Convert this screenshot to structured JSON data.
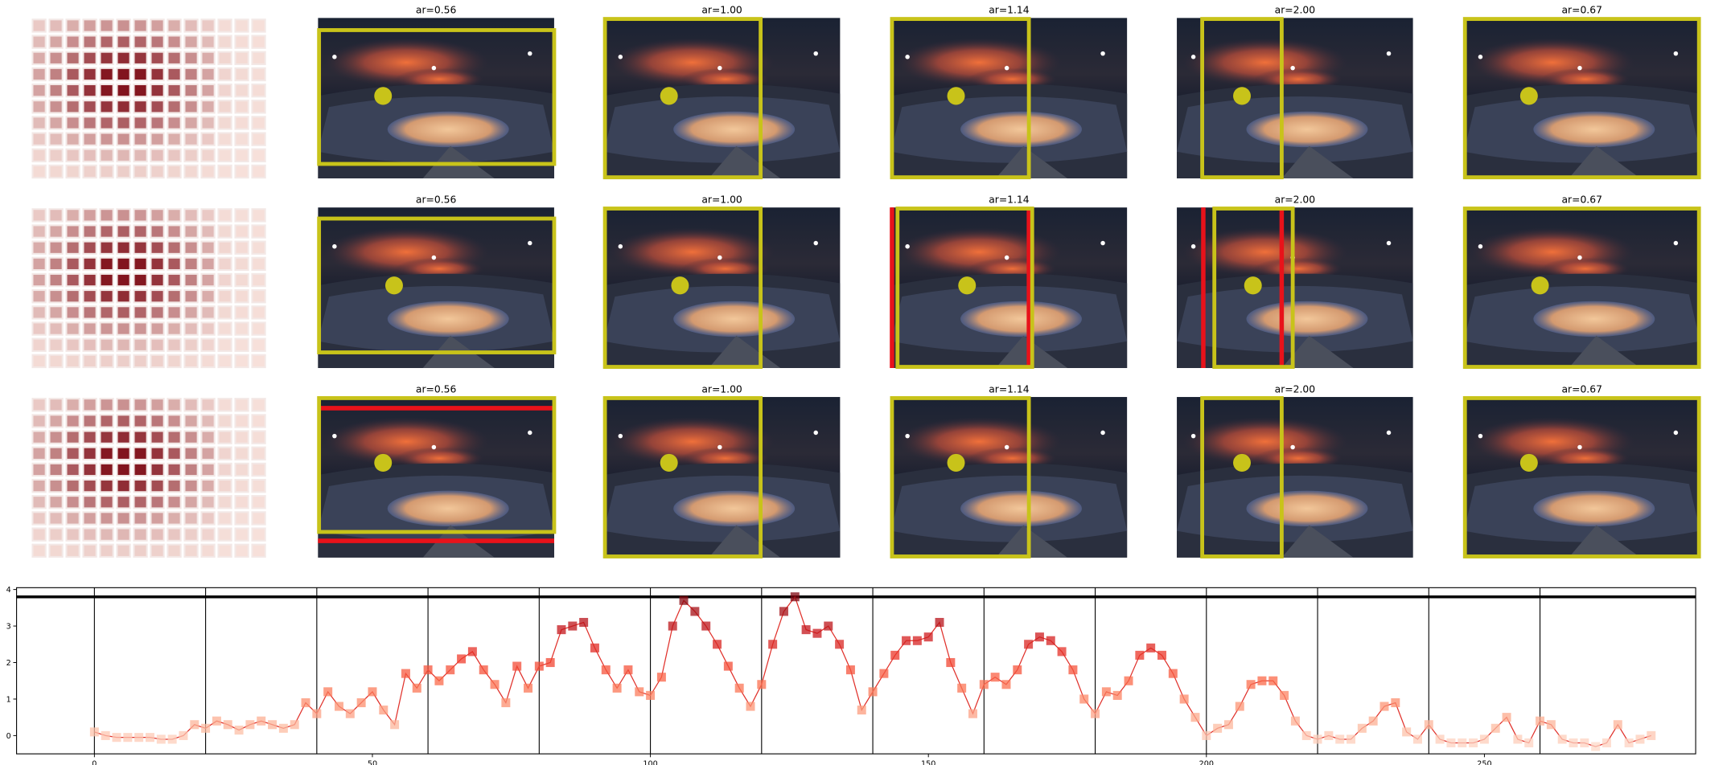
{
  "panel_titles": [
    [
      "ar=0.56",
      "ar=1.00",
      "ar=1.14",
      "ar=2.00",
      "ar=0.67"
    ],
    [
      "ar=0.56",
      "ar=1.00",
      "ar=1.14",
      "ar=2.00",
      "ar=0.67"
    ],
    [
      "ar=0.56",
      "ar=1.00",
      "ar=1.14",
      "ar=2.00",
      "ar=0.67"
    ]
  ],
  "chart_data": {
    "type": "line",
    "x": [
      0,
      2,
      4,
      6,
      8,
      10,
      12,
      14,
      16,
      18,
      20,
      22,
      24,
      26,
      28,
      30,
      32,
      34,
      36,
      38,
      40,
      42,
      44,
      46,
      48,
      50,
      52,
      54,
      56,
      58,
      60,
      62,
      64,
      66,
      68,
      70,
      72,
      74,
      76,
      78,
      80,
      82,
      84,
      86,
      88,
      90,
      92,
      94,
      96,
      98,
      100,
      102,
      104,
      106,
      108,
      110,
      112,
      114,
      116,
      118,
      120,
      122,
      124,
      126,
      128,
      130,
      132,
      134,
      136,
      138,
      140,
      142,
      144,
      146,
      148,
      150,
      152,
      154,
      156,
      158,
      160,
      162,
      164,
      166,
      168,
      170,
      172,
      174,
      176,
      178,
      180,
      182,
      184,
      186,
      188,
      190,
      192,
      194,
      196,
      198,
      200,
      202,
      204,
      206,
      208,
      210,
      212,
      214,
      216,
      218,
      220,
      222,
      224,
      226,
      228,
      230,
      232,
      234,
      236,
      238,
      240,
      242,
      244,
      246,
      248,
      250,
      252,
      254,
      256,
      258,
      260,
      262,
      264,
      266,
      268,
      270,
      272,
      274,
      276,
      278,
      280
    ],
    "values": [
      0.1,
      0.0,
      -0.05,
      -0.05,
      -0.05,
      -0.05,
      -0.1,
      -0.1,
      0.0,
      0.3,
      0.2,
      0.4,
      0.3,
      0.15,
      0.3,
      0.4,
      0.3,
      0.2,
      0.3,
      0.9,
      0.6,
      1.2,
      0.8,
      0.6,
      0.9,
      1.2,
      0.7,
      0.3,
      1.7,
      1.3,
      1.8,
      1.5,
      1.8,
      2.1,
      2.3,
      1.8,
      1.4,
      0.9,
      1.9,
      1.3,
      1.9,
      2.0,
      2.9,
      3.0,
      3.1,
      2.4,
      1.8,
      1.3,
      1.8,
      1.2,
      1.1,
      1.6,
      3.0,
      3.7,
      3.4,
      3.0,
      2.5,
      1.9,
      1.3,
      0.8,
      1.4,
      2.5,
      3.4,
      3.8,
      2.9,
      2.8,
      3.0,
      2.5,
      1.8,
      0.7,
      1.2,
      1.7,
      2.2,
      2.6,
      2.6,
      2.7,
      3.1,
      2.0,
      1.3,
      0.6,
      1.4,
      1.6,
      1.4,
      1.8,
      2.5,
      2.7,
      2.6,
      2.3,
      1.8,
      1.0,
      0.6,
      1.2,
      1.1,
      1.5,
      2.2,
      2.4,
      2.2,
      1.7,
      1.0,
      0.5,
      0.0,
      0.2,
      0.3,
      0.8,
      1.4,
      1.5,
      1.5,
      1.1,
      0.4,
      0.0,
      -0.1,
      0.0,
      -0.1,
      -0.1,
      0.2,
      0.4,
      0.8,
      0.9,
      0.1,
      -0.1,
      0.3,
      -0.1,
      -0.2,
      -0.2,
      -0.2,
      -0.1,
      0.2,
      0.5,
      -0.1,
      -0.2,
      0.4,
      0.3,
      -0.1,
      -0.2,
      -0.2,
      -0.3,
      -0.2,
      0.3,
      -0.2,
      -0.1,
      0.0
    ],
    "line_color": "#e0302a",
    "marker_cmap": "Reds",
    "xlim": [
      -14,
      288
    ],
    "ylim": [
      -0.5,
      4.05
    ],
    "xticks": [
      0,
      50,
      100,
      150,
      200,
      250
    ],
    "yticks": [
      0,
      1,
      2,
      3,
      4
    ],
    "vlines": [
      0,
      20,
      40,
      60,
      80,
      100,
      120,
      140,
      160,
      180,
      200,
      220,
      240,
      260
    ],
    "hline": 3.8
  }
}
